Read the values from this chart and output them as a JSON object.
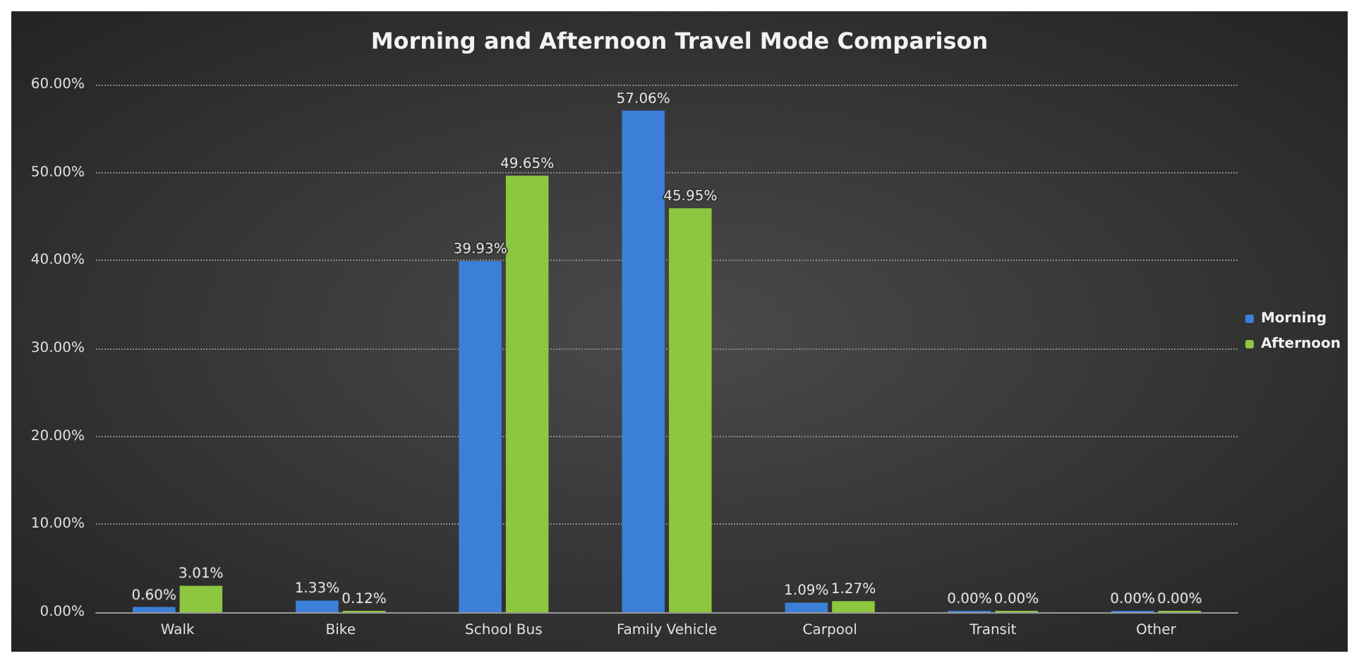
{
  "chart_data": {
    "type": "bar",
    "title": "Morning and Afternoon Travel Mode Comparison",
    "categories": [
      "Walk",
      "Bike",
      "School Bus",
      "Family Vehicle",
      "Carpool",
      "Transit",
      "Other"
    ],
    "series": [
      {
        "name": "Morning",
        "color": "#3b7fd9",
        "values": [
          0.6,
          1.33,
          39.93,
          57.06,
          1.09,
          0,
          0
        ],
        "value_labels": [
          "0.60%",
          "1.33%",
          "39.93%",
          "57.06%",
          "1.09%",
          "0.00%",
          "0.00%"
        ]
      },
      {
        "name": "Afternoon",
        "color": "#8dc63f",
        "values": [
          3.01,
          0.12,
          49.65,
          45.95,
          1.27,
          0,
          0
        ],
        "value_labels": [
          "3.01%",
          "0.12%",
          "49.65%",
          "45.95%",
          "1.27%",
          "0.00%",
          "0.00%"
        ]
      }
    ],
    "ylim": [
      0,
      60
    ],
    "yticks": [
      {
        "value": 0,
        "label": "0.00%"
      },
      {
        "value": 10,
        "label": "10.00%"
      },
      {
        "value": 20,
        "label": "20.00%"
      },
      {
        "value": 30,
        "label": "30.00%"
      },
      {
        "value": 40,
        "label": "40.00%"
      },
      {
        "value": 50,
        "label": "50.00%"
      },
      {
        "value": 60,
        "label": "60.00%"
      }
    ],
    "grid": "y",
    "legend": "right"
  }
}
